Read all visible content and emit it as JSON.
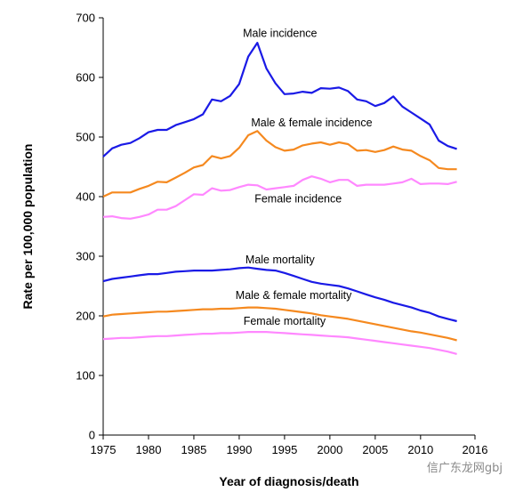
{
  "chart_data": {
    "type": "line",
    "title": "",
    "xlabel": "Year of diagnosis/death",
    "ylabel": "Rate per 100,000 population",
    "xlim": [
      1975,
      2016
    ],
    "ylim": [
      0,
      700
    ],
    "x_ticks": [
      1975,
      1980,
      1985,
      1990,
      1995,
      2000,
      2005,
      2010,
      2016
    ],
    "y_ticks": [
      0,
      100,
      200,
      300,
      400,
      500,
      600,
      700
    ],
    "grid": false,
    "x": [
      1975,
      1976,
      1977,
      1978,
      1979,
      1980,
      1981,
      1982,
      1983,
      1984,
      1985,
      1986,
      1987,
      1988,
      1989,
      1990,
      1991,
      1992,
      1993,
      1994,
      1995,
      1996,
      1997,
      1998,
      1999,
      2000,
      2001,
      2002,
      2003,
      2004,
      2005,
      2006,
      2007,
      2008,
      2009,
      2010,
      2011,
      2012,
      2013,
      2014
    ],
    "series": [
      {
        "name": "Male incidence",
        "color": "#1a1ae6",
        "values": [
          467,
          481,
          487,
          490,
          498,
          508,
          512,
          512,
          520,
          525,
          530,
          538,
          563,
          560,
          569,
          589,
          635,
          658,
          615,
          590,
          572,
          573,
          576,
          574,
          582,
          581,
          583,
          577,
          563,
          560,
          552,
          557,
          568,
          551,
          541,
          531,
          521,
          494,
          485,
          480
        ]
      },
      {
        "name": "Male & female incidence",
        "color": "#f5891f",
        "values": [
          400,
          407,
          407,
          407,
          413,
          418,
          425,
          424,
          432,
          440,
          449,
          453,
          468,
          464,
          468,
          482,
          503,
          510,
          494,
          483,
          477,
          479,
          486,
          489,
          491,
          487,
          491,
          488,
          477,
          478,
          475,
          478,
          484,
          479,
          477,
          468,
          461,
          448,
          446,
          446
        ]
      },
      {
        "name": "Female incidence",
        "color": "#ff88ff",
        "values": [
          366,
          367,
          364,
          363,
          366,
          370,
          378,
          378,
          384,
          394,
          404,
          403,
          414,
          410,
          411,
          416,
          420,
          419,
          412,
          414,
          416,
          418,
          428,
          434,
          430,
          424,
          428,
          428,
          418,
          420,
          420,
          420,
          422,
          424,
          430,
          421,
          422,
          422,
          421,
          425
        ]
      },
      {
        "name": "Male mortality",
        "color": "#1a1ae6",
        "values": [
          258,
          262,
          264,
          266,
          268,
          270,
          270,
          272,
          274,
          275,
          276,
          276,
          276,
          277,
          278,
          280,
          281,
          279,
          277,
          276,
          272,
          267,
          262,
          257,
          254,
          252,
          250,
          246,
          241,
          236,
          231,
          227,
          222,
          218,
          214,
          209,
          205,
          199,
          195,
          191
        ]
      },
      {
        "name": "Male & female mortality",
        "color": "#f5891f",
        "values": [
          199,
          202,
          203,
          204,
          205,
          206,
          207,
          207,
          208,
          209,
          210,
          211,
          211,
          212,
          212,
          213,
          214,
          214,
          213,
          212,
          210,
          208,
          206,
          204,
          201,
          199,
          197,
          195,
          192,
          189,
          186,
          183,
          180,
          177,
          174,
          172,
          169,
          166,
          163,
          159
        ]
      },
      {
        "name": "Female mortality",
        "color": "#ff88ff",
        "values": [
          161,
          162,
          163,
          163,
          164,
          165,
          166,
          166,
          167,
          168,
          169,
          170,
          170,
          171,
          171,
          172,
          173,
          173,
          173,
          172,
          171,
          170,
          169,
          168,
          167,
          166,
          165,
          164,
          162,
          160,
          158,
          156,
          154,
          152,
          150,
          148,
          146,
          143,
          140,
          136
        ]
      }
    ],
    "annotations": [
      {
        "text": "Male incidence",
        "x": 1994.5,
        "y": 668
      },
      {
        "text": "Male & female incidence",
        "x": 1998,
        "y": 518
      },
      {
        "text": "Female incidence",
        "x": 1996.5,
        "y": 390
      },
      {
        "text": "Male mortality",
        "x": 1994.5,
        "y": 288
      },
      {
        "text": "Male & female mortality",
        "x": 1996,
        "y": 228
      },
      {
        "text": "Female mortality",
        "x": 1995,
        "y": 185
      }
    ]
  },
  "watermark": {
    "text": "信广东龙网gbj"
  }
}
